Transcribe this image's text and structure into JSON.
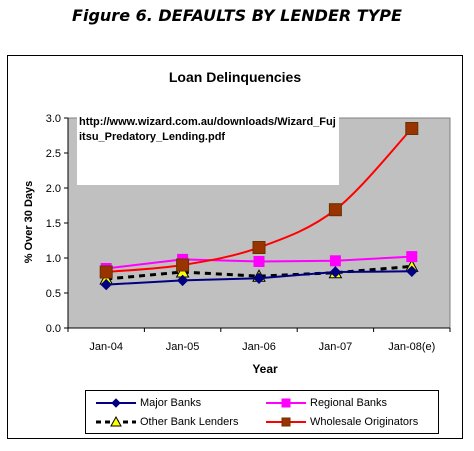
{
  "figure_heading": "Figure 6. DEFAULTS BY LENDER TYPE",
  "annotation": "http://www.wizard.com.au/downloads/Wizard_Fujitsu_Predatory_Lending.pdf",
  "chart_data": {
    "type": "line",
    "title": "Loan Delinquencies",
    "xlabel": "Year",
    "ylabel": "% Over 30 Days",
    "categories": [
      "Jan-04",
      "Jan-05",
      "Jan-06",
      "Jan-07",
      "Jan-08(e)"
    ],
    "ylim": [
      0,
      3.0
    ],
    "yticks": [
      "0.0",
      "0.5",
      "1.0",
      "1.5",
      "2.0",
      "2.5",
      "3.0"
    ],
    "grid": false,
    "plot_background": "#c0c0c0",
    "legend_position": "bottom",
    "series": [
      {
        "name": "Major Banks",
        "values": [
          0.62,
          0.68,
          0.71,
          0.8,
          0.81
        ],
        "color": "#000080",
        "marker": "diamond",
        "line": "solid"
      },
      {
        "name": "Regional Banks",
        "values": [
          0.85,
          0.98,
          0.95,
          0.96,
          1.02
        ],
        "color": "#ff00ff",
        "marker": "square",
        "line": "solid"
      },
      {
        "name": "Other Bank Lenders",
        "values": [
          0.7,
          0.8,
          0.74,
          0.79,
          0.88
        ],
        "color": "#000000",
        "marker": "triangle",
        "marker_fill": "#ffff00",
        "line": "dashed"
      },
      {
        "name": "Wholesale Originators",
        "values": [
          0.8,
          0.9,
          1.15,
          1.69,
          2.85
        ],
        "color": "#ff0000",
        "marker": "square",
        "marker_fill": "#993300",
        "line": "smooth"
      }
    ]
  }
}
